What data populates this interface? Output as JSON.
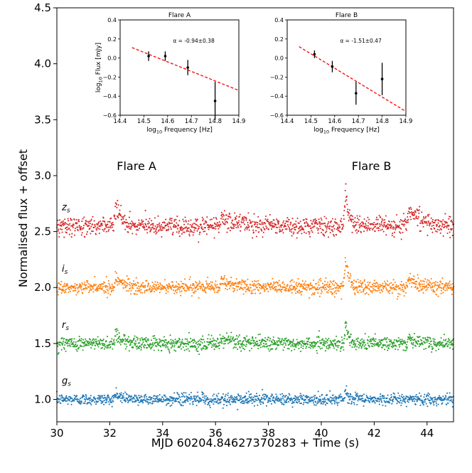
{
  "chart_data": [
    {
      "type": "scatter",
      "title": "",
      "xlabel": "MJD 60204.84627370283 + Time (s)",
      "ylabel": "Normalised flux + offset",
      "xlim": [
        30,
        45
      ],
      "ylim": [
        0.8,
        4.5
      ],
      "x_ticks": [
        30,
        32,
        34,
        36,
        38,
        40,
        42,
        44
      ],
      "y_ticks": [
        1.0,
        1.5,
        2.0,
        2.5,
        3.0,
        3.5,
        4.0,
        4.5
      ],
      "x_tick_labels": [
        "30",
        "32",
        "34",
        "36",
        "38",
        "40",
        "42",
        "44"
      ],
      "y_tick_labels": [
        "1.0",
        "1.5",
        "2.0",
        "2.5",
        "3.0",
        "3.5",
        "4.0",
        "4.5"
      ],
      "annotations": [
        {
          "text": "Flare A",
          "x": 32.4,
          "y": 3.05
        },
        {
          "text": "Flare B",
          "x": 41.15,
          "y": 3.05
        }
      ],
      "series": [
        {
          "name": "g_s",
          "label_main": "g",
          "label_sub": "s",
          "offset": 1.0,
          "noise": 0.025,
          "color": "#1f77b4",
          "flares": [
            {
              "t": 32.2,
              "amp": 0.06,
              "decay": 0.25
            },
            {
              "t": 40.9,
              "amp": 0.1,
              "decay": 0.12
            }
          ]
        },
        {
          "name": "r_s",
          "label_main": "r",
          "label_sub": "s",
          "offset": 1.5,
          "noise": 0.03,
          "color": "#2ca02c",
          "flares": [
            {
              "t": 32.2,
              "amp": 0.12,
              "decay": 0.25
            },
            {
              "t": 40.9,
              "amp": 0.25,
              "decay": 0.12
            },
            {
              "t": 36.2,
              "amp": 0.05,
              "decay": 0.6
            },
            {
              "t": 43.3,
              "amp": 0.05,
              "decay": 0.4
            }
          ]
        },
        {
          "name": "i_s",
          "label_main": "i",
          "label_sub": "s",
          "offset": 2.0,
          "noise": 0.03,
          "color": "#ff7f0e",
          "flares": [
            {
              "t": 32.2,
              "amp": 0.15,
              "decay": 0.25
            },
            {
              "t": 40.9,
              "amp": 0.4,
              "decay": 0.12
            },
            {
              "t": 36.2,
              "amp": 0.07,
              "decay": 0.6
            },
            {
              "t": 43.3,
              "amp": 0.1,
              "decay": 0.4
            }
          ]
        },
        {
          "name": "z_s",
          "label_main": "z",
          "label_sub": "s",
          "offset": 2.55,
          "noise": 0.04,
          "color": "#d62728",
          "flares": [
            {
              "t": 32.2,
              "amp": 0.25,
              "decay": 0.25
            },
            {
              "t": 40.9,
              "amp": 0.45,
              "decay": 0.12
            },
            {
              "t": 36.2,
              "amp": 0.1,
              "decay": 0.6
            },
            {
              "t": 43.3,
              "amp": 0.22,
              "decay": 0.4
            }
          ]
        }
      ]
    },
    {
      "type": "scatter",
      "title": "Flare A",
      "xlabel_main": "log",
      "xlabel_sub": "10",
      "xlabel_rest": " Frequency [Hz]",
      "ylabel_main": "log",
      "ylabel_sub": "10",
      "ylabel_rest": " Flux [mJy]",
      "xlim": [
        14.4,
        14.9
      ],
      "ylim": [
        -0.6,
        0.4
      ],
      "x_ticks": [
        14.4,
        14.5,
        14.6,
        14.7,
        14.8,
        14.9
      ],
      "y_ticks": [
        -0.6,
        -0.4,
        -0.2,
        0.0,
        0.2,
        0.4
      ],
      "x_tick_labels": [
        "14.4",
        "14.5",
        "14.6",
        "14.7",
        "14.8",
        "14.9"
      ],
      "y_tick_labels": [
        "−0.6",
        "−0.4",
        "−0.2",
        "0.0",
        "0.2",
        "0.4"
      ],
      "annotation": "α = -0.94±0.38",
      "points": [
        {
          "x": 14.52,
          "y": 0.02,
          "err": 0.05
        },
        {
          "x": 14.59,
          "y": 0.02,
          "err": 0.05
        },
        {
          "x": 14.685,
          "y": -0.1,
          "err": 0.08
        },
        {
          "x": 14.8,
          "y": -0.45,
          "err": 0.2
        }
      ],
      "fit": {
        "x1": 14.45,
        "y1": 0.11,
        "x2": 14.9,
        "y2": -0.34,
        "color": "#ff0000"
      }
    },
    {
      "type": "scatter",
      "title": "Flare B",
      "xlabel_main": "log",
      "xlabel_sub": "10",
      "xlabel_rest": " Frequency [Hz]",
      "xlim": [
        14.4,
        14.9
      ],
      "ylim": [
        -0.6,
        0.4
      ],
      "x_ticks": [
        14.4,
        14.5,
        14.6,
        14.7,
        14.8,
        14.9
      ],
      "y_ticks": [
        -0.6,
        -0.4,
        -0.2,
        0.0,
        0.2,
        0.4
      ],
      "x_tick_labels": [
        "14.4",
        "14.5",
        "14.6",
        "14.7",
        "14.8",
        "14.9"
      ],
      "y_tick_labels": [
        "−0.6",
        "−0.4",
        "−0.2",
        "0.0",
        "0.2",
        "0.4"
      ],
      "annotation": "α = -1.51±0.47",
      "points": [
        {
          "x": 14.515,
          "y": 0.04,
          "err": 0.04
        },
        {
          "x": 14.59,
          "y": -0.09,
          "err": 0.06
        },
        {
          "x": 14.69,
          "y": -0.37,
          "err": 0.12
        },
        {
          "x": 14.8,
          "y": -0.22,
          "err": 0.17
        }
      ],
      "fit": {
        "x1": 14.45,
        "y1": 0.12,
        "x2": 14.9,
        "y2": -0.56,
        "color": "#ff0000"
      }
    }
  ]
}
